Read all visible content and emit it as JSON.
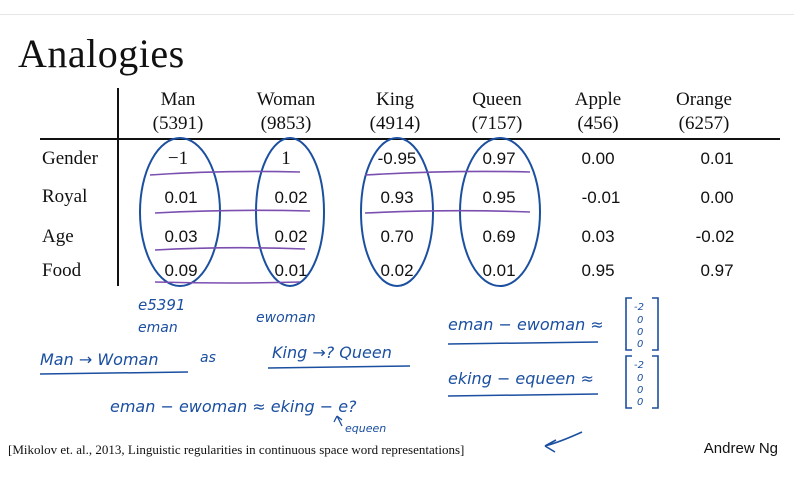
{
  "title": "Analogies",
  "columns": [
    {
      "name": "Man",
      "index": "(5391)"
    },
    {
      "name": "Woman",
      "index": "(9853)"
    },
    {
      "name": "King",
      "index": "(4914)"
    },
    {
      "name": "Queen",
      "index": "(7157)"
    },
    {
      "name": "Apple",
      "index": "(456)"
    },
    {
      "name": "Orange",
      "index": "(6257)"
    }
  ],
  "rows": [
    {
      "label": "Gender",
      "values": [
        "−1",
        "1",
        "-0.95",
        "0.97",
        "0.00",
        "0.01"
      ]
    },
    {
      "label": "Royal",
      "values": [
        "0.01",
        "0.02",
        "0.93",
        "0.95",
        "-0.01",
        "0.00"
      ]
    },
    {
      "label": "Age",
      "values": [
        "0.03",
        "0.02",
        "0.70",
        "0.69",
        "0.03",
        "-0.02"
      ]
    },
    {
      "label": "Food",
      "values": [
        "0.09",
        "0.01",
        "0.02",
        "0.01",
        "0.95",
        "0.97"
      ]
    }
  ],
  "handwriting": {
    "e5391": "e5391",
    "eman": "eman",
    "ewoman": "ewoman",
    "man_to_woman": "Man → Woman",
    "as": "as",
    "king_to_queen": "King →? Queen",
    "eq1": "eman − ewoman ≈",
    "eq2": "eking − equeen ≈",
    "eq3": "eman − ewoman ≈ eking − e?",
    "equeen_note": "equeen",
    "vec1": [
      "-2",
      "0",
      "0",
      "0"
    ],
    "vec2": [
      "-2",
      "0",
      "0",
      "0"
    ]
  },
  "citation": "[Mikolov et. al., 2013, Linguistic regularities in continuous space word representations]",
  "author": "Andrew Ng",
  "colors": {
    "ink_blue": "#1b4fa0",
    "ink_purple": "#7a4fb0"
  }
}
